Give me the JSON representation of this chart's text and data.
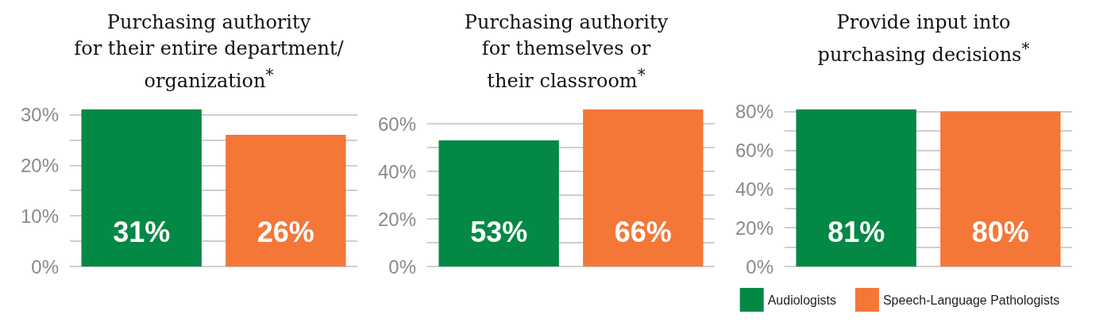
{
  "chart_data": [
    {
      "type": "bar",
      "title": "Purchasing authority\nfor their entire department/\norganization$^{*}$",
      "categories": [
        null
      ],
      "series": [
        {
          "color": "#038846",
          "values": [
            31
          ],
          "value_labels": [
            "31%"
          ]
        },
        {
          "color": "#f47738",
          "values": [
            26
          ],
          "value_labels": [
            "26%"
          ]
        }
      ],
      "ylim": [
        0,
        31
      ],
      "yticks": [
        {
          "value": 0,
          "label": "0%"
        },
        {
          "value": 5,
          "label": null
        },
        {
          "value": 10,
          "label": "10%"
        },
        {
          "value": 15,
          "label": null
        },
        {
          "value": 20,
          "label": "20%"
        },
        {
          "value": 25,
          "label": null
        },
        {
          "value": 30,
          "label": "30%"
        }
      ],
      "grid": "y",
      "legend": false
    },
    {
      "type": "bar",
      "title": "Purchasing authority\nfor themselves or\ntheir classroom$^{*}$",
      "categories": [
        null
      ],
      "series": [
        {
          "color": "#038846",
          "values": [
            53
          ],
          "value_labels": [
            "53%"
          ]
        },
        {
          "color": "#f47738",
          "values": [
            66
          ],
          "value_labels": [
            "66%"
          ]
        }
      ],
      "ylim": [
        0,
        66
      ],
      "yticks": [
        {
          "value": 0,
          "label": "0%"
        },
        {
          "value": 10,
          "label": null
        },
        {
          "value": 20,
          "label": "20%"
        },
        {
          "value": 30,
          "label": null
        },
        {
          "value": 40,
          "label": "40%"
        },
        {
          "value": 50,
          "label": null
        },
        {
          "value": 60,
          "label": "60%"
        }
      ],
      "grid": "y",
      "legend": false
    },
    {
      "type": "bar",
      "title": "Provide input into\npurchasing decisions$^{*}$",
      "categories": [
        null
      ],
      "series": [
        {
          "name": "Audiologists",
          "color": "#038846",
          "values": [
            81
          ],
          "value_labels": [
            "81%"
          ]
        },
        {
          "name": "Speech-Language Pathologists",
          "color": "#f47738",
          "values": [
            80
          ],
          "value_labels": [
            "80%"
          ]
        }
      ],
      "ylim": [
        0,
        81
      ],
      "yticks": [
        {
          "value": 0,
          "label": "0%"
        },
        {
          "value": 10,
          "label": null
        },
        {
          "value": 20,
          "label": "20%"
        },
        {
          "value": 30,
          "label": null
        },
        {
          "value": 40,
          "label": "40%"
        },
        {
          "value": 50,
          "label": null
        },
        {
          "value": 60,
          "label": "60%"
        },
        {
          "value": 70,
          "label": null
        },
        {
          "value": 80,
          "label": "80%"
        }
      ],
      "grid": "y",
      "legend": "bottom"
    }
  ]
}
